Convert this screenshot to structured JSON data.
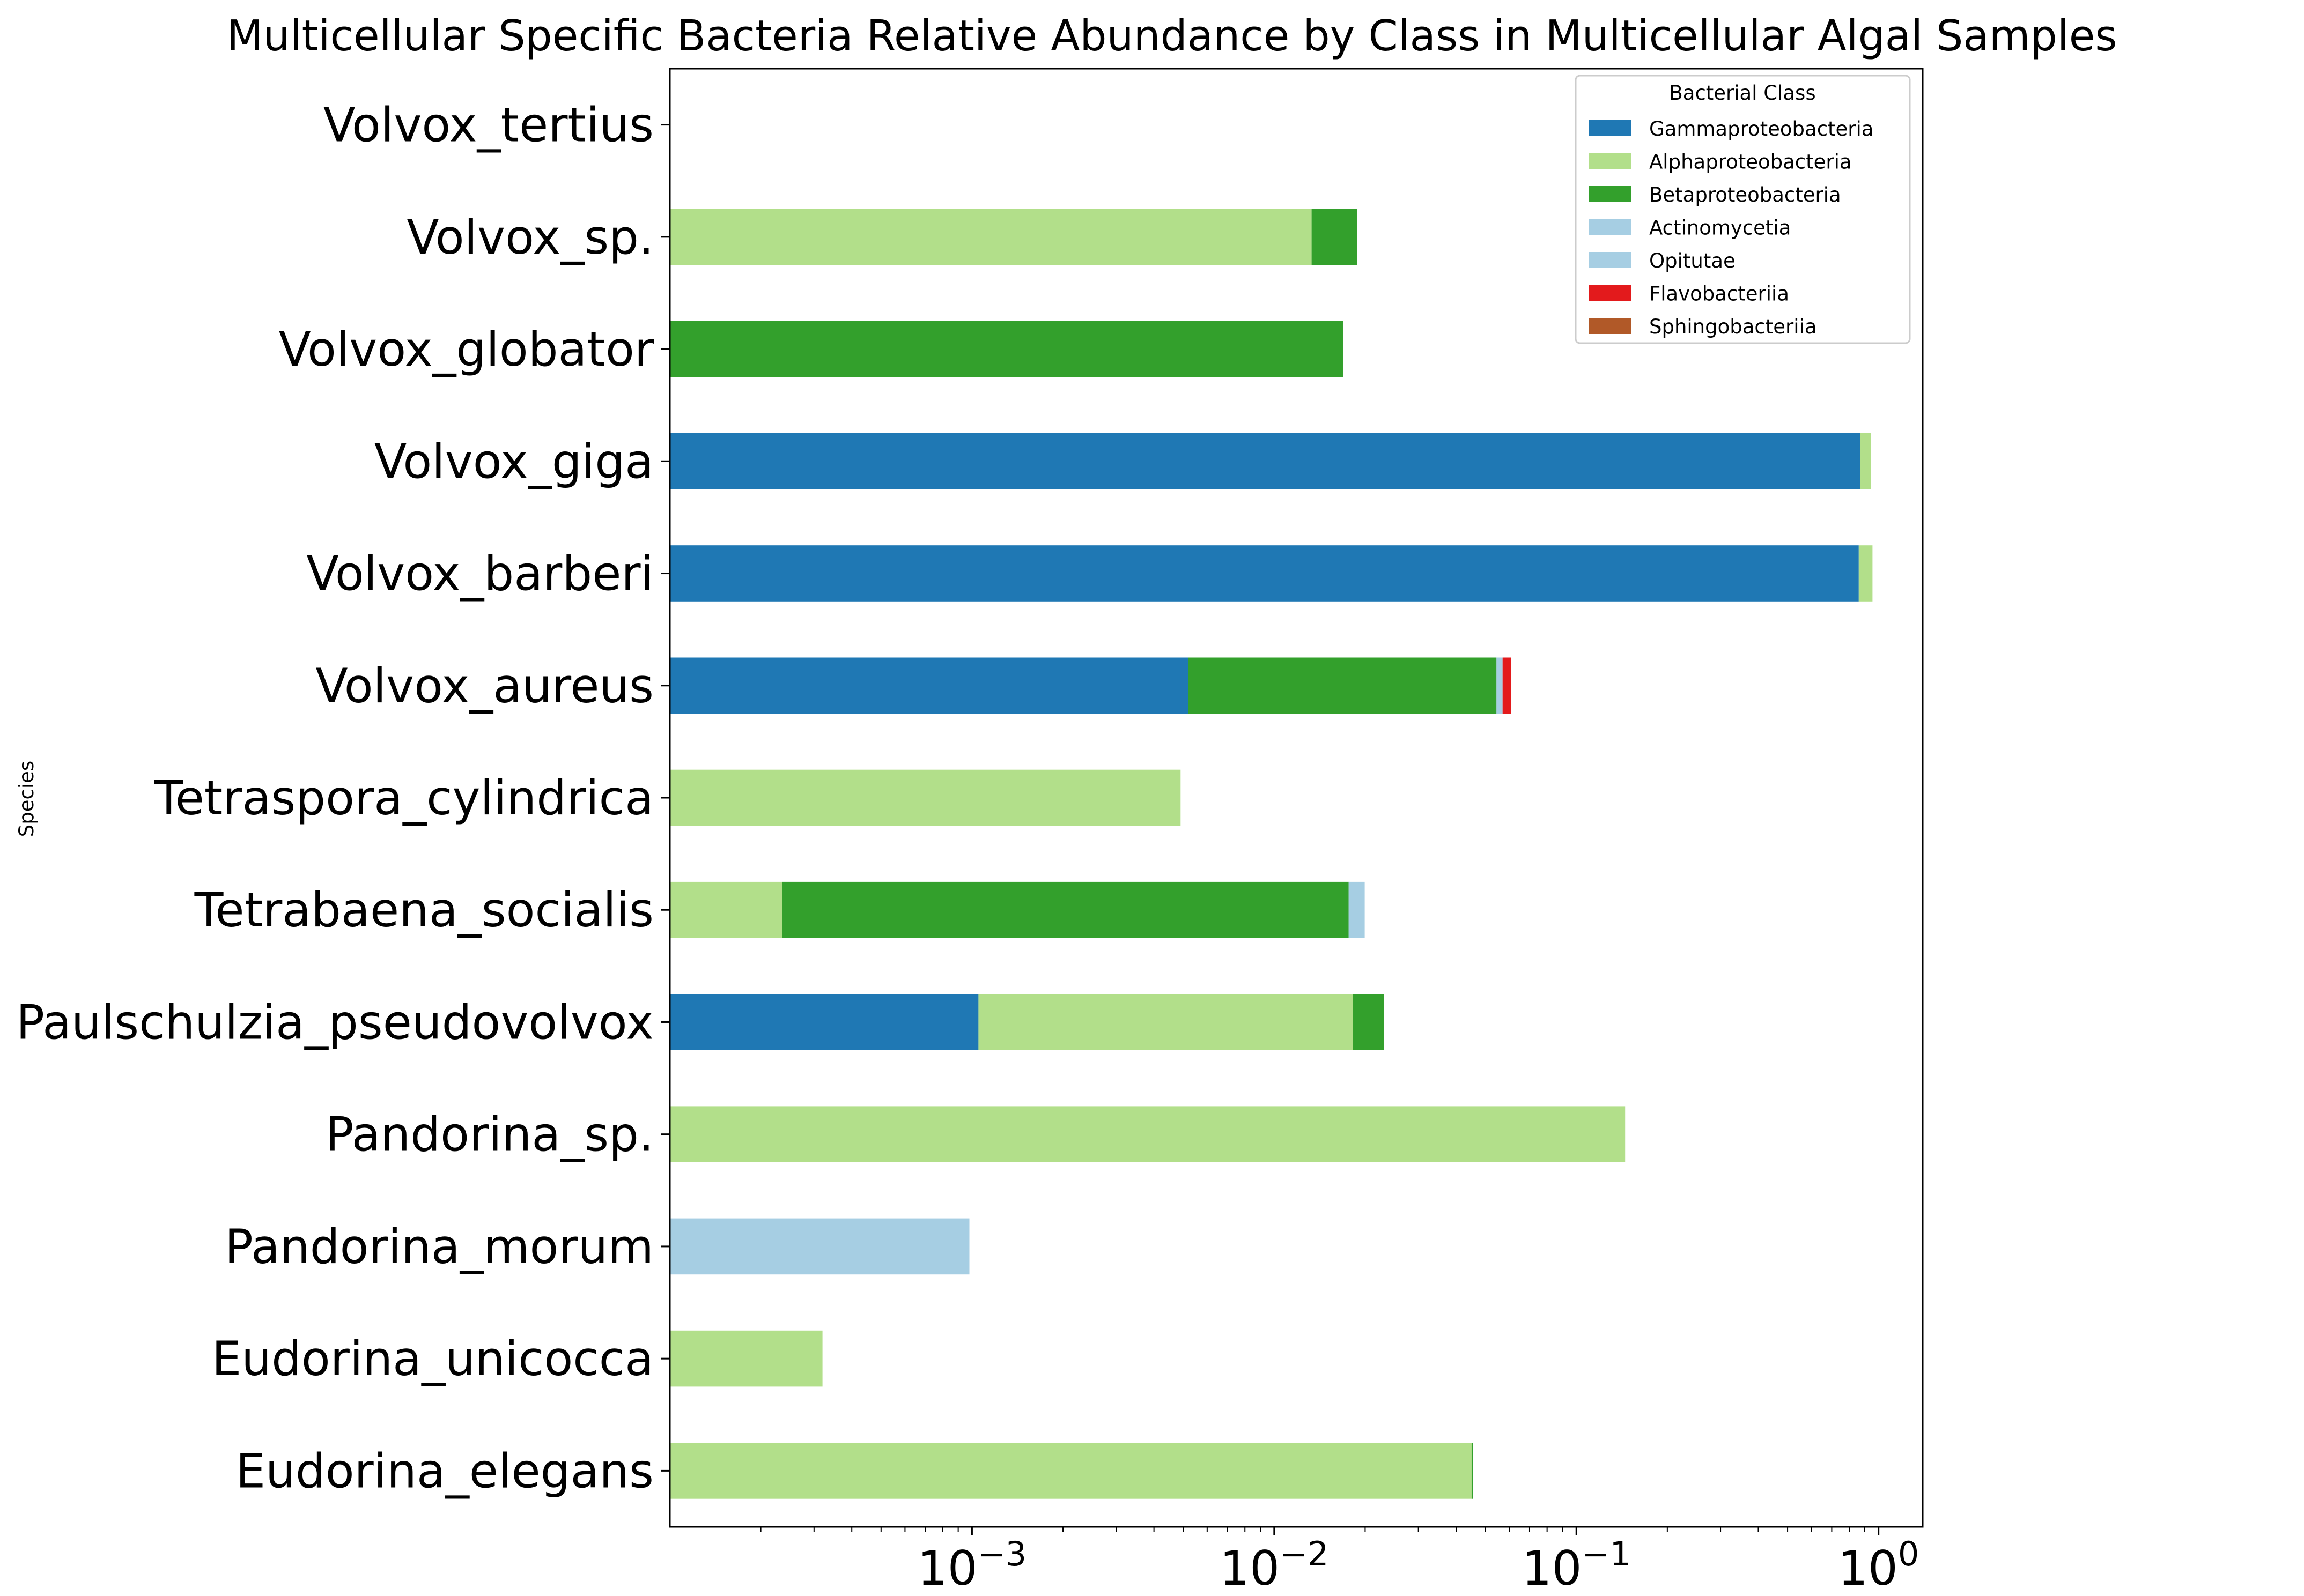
{
  "chart_data": {
    "type": "bar",
    "orientation": "horizontal",
    "stacked": true,
    "title": "Multicellular Specific Bacteria Relative Abundance by Class in Multicellular Algal Samples",
    "xlabel": "",
    "ylabel": "Species",
    "xscale": "log",
    "xlim": [
      0.0001,
      1.4
    ],
    "xticks": [
      {
        "value": 0.001,
        "base": "10",
        "exp": "−3"
      },
      {
        "value": 0.01,
        "base": "10",
        "exp": "−2"
      },
      {
        "value": 0.1,
        "base": "10",
        "exp": "−1"
      },
      {
        "value": 1,
        "base": "10",
        "exp": "0"
      }
    ],
    "grid": false,
    "legend_position": "top-right",
    "legend_title": "Bacterial Class",
    "categories": [
      "Eudorina_elegans",
      "Eudorina_unicocca",
      "Pandorina_morum",
      "Pandorina_sp.",
      "Paulschulzia_pseudovolvox",
      "Tetrabaena_socialis",
      "Tetraspora_cylindrica",
      "Volvox_aureus",
      "Volvox_barberi",
      "Volvox_giga",
      "Volvox_globator",
      "Volvox_sp.",
      "Volvox_tertius"
    ],
    "series": [
      {
        "name": "Gammaproteobacteria",
        "color": "#1f78b4",
        "values": [
          0,
          0,
          0,
          0,
          0.00105,
          0,
          0,
          0.0052,
          0.86,
          0.87,
          0,
          0,
          0
        ]
      },
      {
        "name": "Alphaproteobacteria",
        "color": "#b2df8a",
        "values": [
          0.045,
          0.00032,
          0,
          0.145,
          0.0172,
          0.000235,
          0.0049,
          0,
          0.095,
          0.075,
          0,
          0.0133,
          0
        ]
      },
      {
        "name": "Betaproteobacteria",
        "color": "#33a02c",
        "values": [
          0.0004,
          0,
          0,
          0,
          0.0048,
          0.0174,
          0,
          0.0492,
          0,
          0,
          0.0169,
          0.0055,
          0
        ]
      },
      {
        "name": "Actinomycetia",
        "color": "#a6cee3",
        "values": [
          0,
          0,
          0,
          0,
          0,
          0.0023,
          0,
          0.0026,
          0,
          0,
          0,
          0,
          0
        ]
      },
      {
        "name": "Opitutae",
        "color": "#a6cee3",
        "values": [
          0,
          0,
          0.00098,
          0,
          0,
          0,
          0,
          0,
          0,
          0,
          0,
          0,
          0
        ]
      },
      {
        "name": "Flavobacteriia",
        "color": "#e31a1c",
        "values": [
          0,
          0,
          0,
          0,
          0,
          0,
          0,
          0.0038,
          0,
          0,
          0,
          0,
          0
        ]
      },
      {
        "name": "Sphingobacteriia",
        "color": "#b15928",
        "values": [
          0,
          0,
          0,
          0,
          0,
          0,
          0,
          0,
          0,
          0,
          0,
          0,
          0
        ]
      }
    ]
  }
}
